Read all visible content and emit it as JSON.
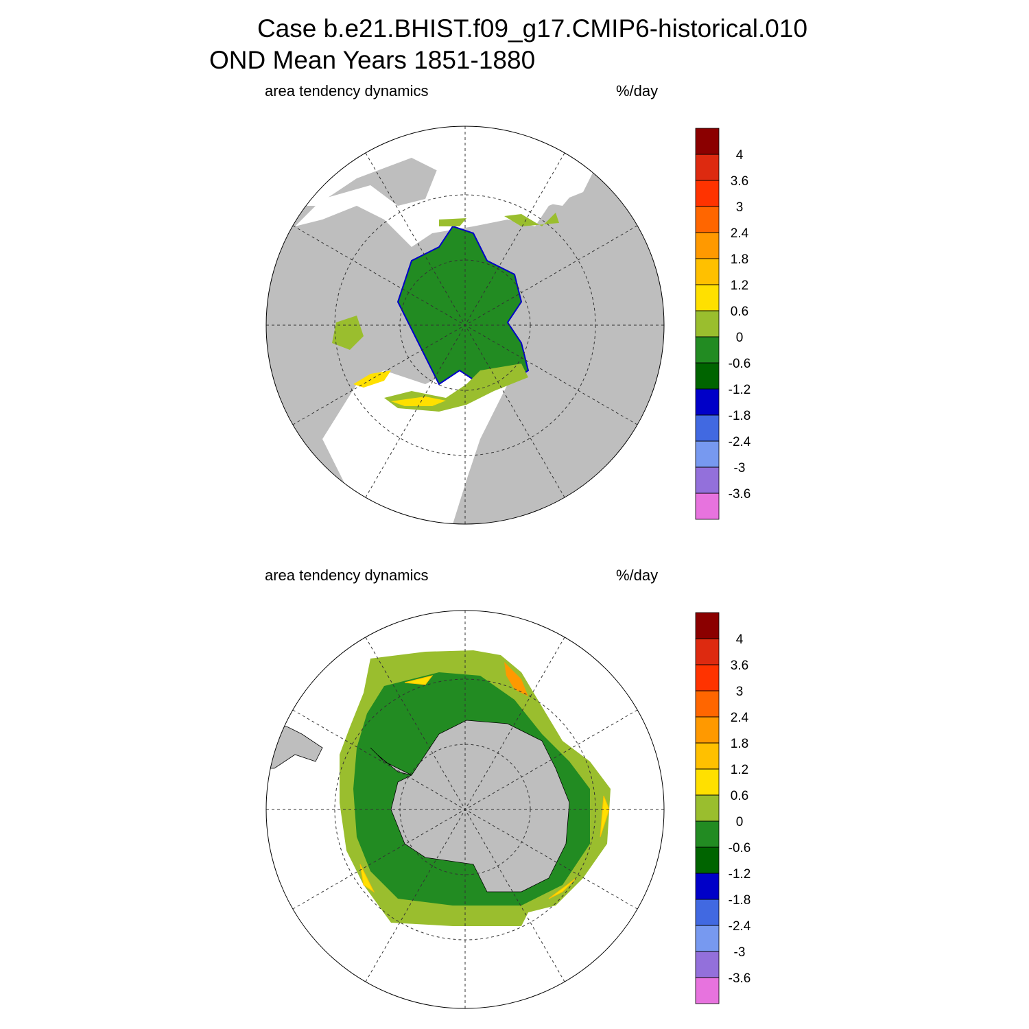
{
  "title": [
    "Case b.e21.BHIST.f09_g17.CMIP6-historical.010",
    "OND Mean   Years 1851-1880"
  ],
  "panels": [
    {
      "left_label": "area tendency dynamics",
      "right_label": "%/day",
      "colorbar": {
        "levels": [
          -3.6,
          -3,
          -2.4,
          -1.8,
          -1.2,
          -0.6,
          0,
          0.6,
          1.2,
          1.8,
          2.4,
          3,
          3.6,
          4
        ],
        "colors": [
          "#e773de",
          "#9370db",
          "#7799f0",
          "#4169e1",
          "#0000c8",
          "#006400",
          "#228b22",
          "#9abe2e",
          "#ffe000",
          "#ffc000",
          "#ff9900",
          "#ff6600",
          "#ff3300",
          "#dd2a10",
          "#8b0000"
        ]
      }
    },
    {
      "left_label": "area tendency dynamics",
      "right_label": "%/day",
      "colorbar": {
        "levels": [
          -3.6,
          -3,
          -2.4,
          -1.8,
          -1.2,
          -0.6,
          0,
          0.6,
          1.2,
          1.8,
          2.4,
          3,
          3.6,
          4
        ],
        "colors": [
          "#e773de",
          "#9370db",
          "#7799f0",
          "#4169e1",
          "#0000c8",
          "#006400",
          "#228b22",
          "#9abe2e",
          "#ffe000",
          "#ffc000",
          "#ff9900",
          "#ff6600",
          "#ff3300",
          "#dd2a10",
          "#8b0000"
        ]
      }
    }
  ]
}
